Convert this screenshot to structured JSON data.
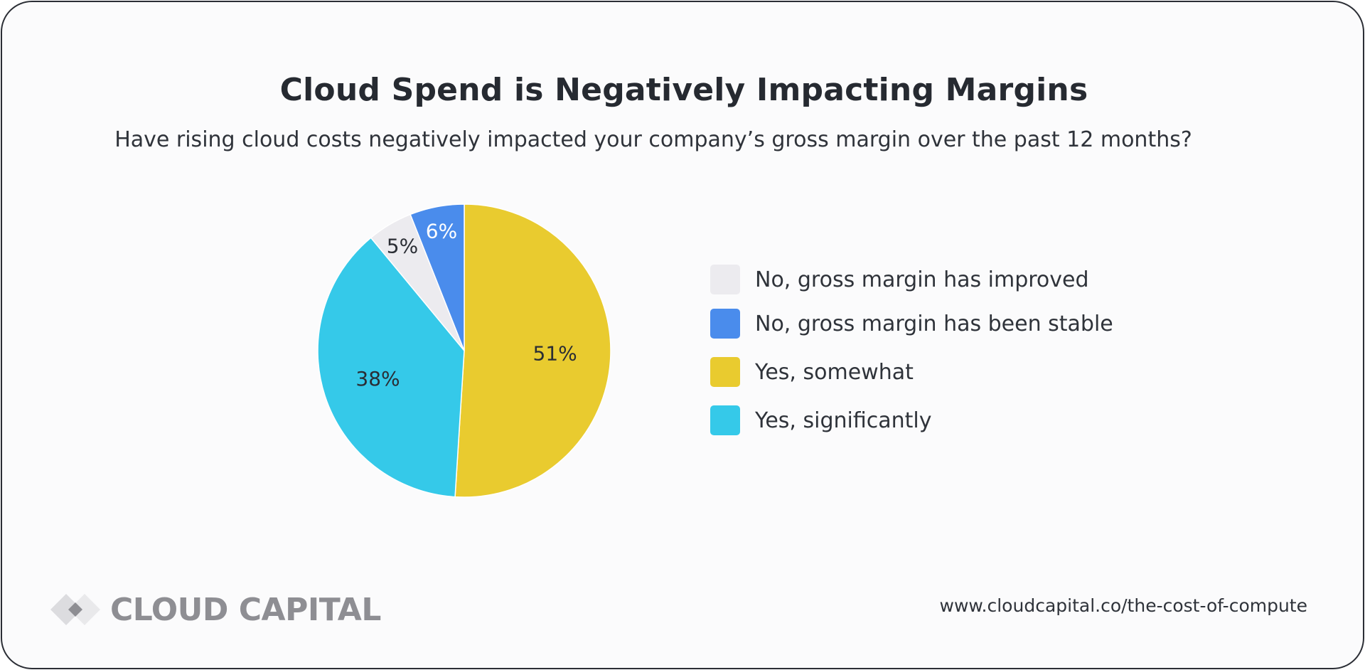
{
  "header": {
    "title": "Cloud Spend is Negatively Impacting Margins",
    "subtitle": "Have rising cloud costs negatively impacted your company’s gross margin over the past 12 months?"
  },
  "chart_data": {
    "type": "pie",
    "title": "Cloud Spend is Negatively Impacting Margins",
    "subtitle": "Have rising cloud costs negatively impacted your company’s gross margin over the past 12 months?",
    "legend_position": "right",
    "slices": [
      {
        "label": "Yes, somewhat",
        "value": 51,
        "data_label": "51%",
        "color": "#e9cb2f",
        "label_color": "#2a2d34"
      },
      {
        "label": "Yes, significantly",
        "value": 38,
        "data_label": "38%",
        "color": "#35c9e9",
        "label_color": "#2a2d34"
      },
      {
        "label": "No, gross margin has improved",
        "value": 5,
        "data_label": "5%",
        "color": "#ecebef",
        "label_color": "#2a2d34"
      },
      {
        "label": "No, gross margin has been stable",
        "value": 6,
        "data_label": "6%",
        "color": "#4a8cec",
        "label_color": "#ffffff"
      }
    ],
    "legend": [
      {
        "label": "No, gross margin has improved",
        "color": "#ecebef"
      },
      {
        "label": "No, gross margin has been stable",
        "color": "#4a8cec"
      },
      {
        "label": "Yes, somewhat",
        "color": "#e9cb2f"
      },
      {
        "label": "Yes, significantly",
        "color": "#35c9e9"
      }
    ]
  },
  "footer": {
    "logo_icon": "diamond-logo-icon",
    "logo_text": "CLOUD CAPITAL",
    "url": "www.cloudcapital.co/the-cost-of-compute"
  }
}
